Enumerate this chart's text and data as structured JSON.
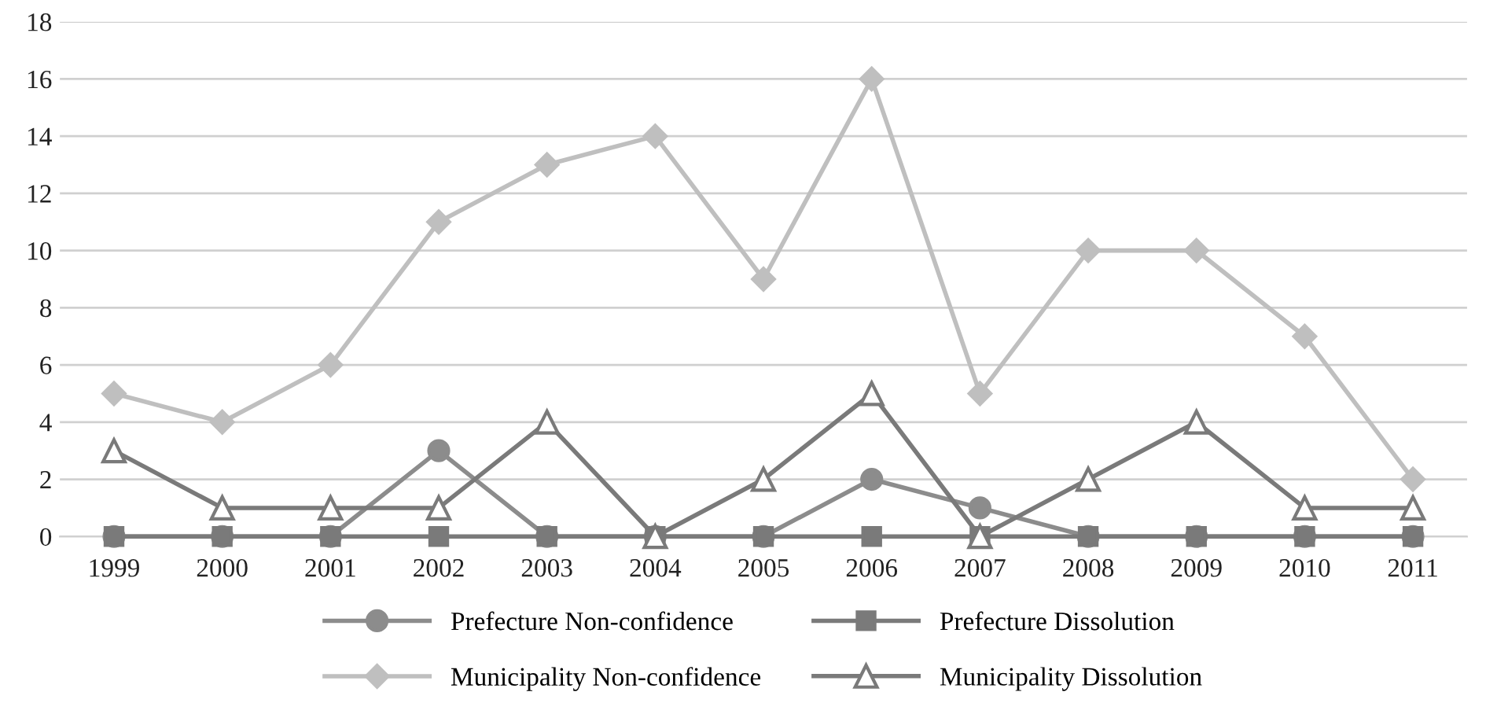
{
  "chart_data": {
    "type": "line",
    "categories": [
      "1999",
      "2000",
      "2001",
      "2002",
      "2003",
      "2004",
      "2005",
      "2006",
      "2007",
      "2008",
      "2009",
      "2010",
      "2011"
    ],
    "ylim": [
      0,
      18
    ],
    "yticks": [
      0,
      2,
      4,
      6,
      8,
      10,
      12,
      14,
      16,
      18
    ],
    "grid": "y",
    "legend": "bottom",
    "line_style": "solid",
    "series": [
      {
        "name": "Prefecture Non-confidence",
        "color": "#8c8c8c",
        "marker": "circle",
        "values": [
          0,
          0,
          0,
          3,
          0,
          0,
          0,
          2,
          1,
          0,
          0,
          0,
          0
        ]
      },
      {
        "name": "Prefecture Dissolution",
        "color": "#7a7a7a",
        "marker": "square",
        "values": [
          0,
          0,
          0,
          0,
          0,
          0,
          0,
          0,
          0,
          0,
          0,
          0,
          0
        ]
      },
      {
        "name": "Municipality Non-confidence",
        "color": "#bfbfbf",
        "marker": "diamond",
        "values": [
          5,
          4,
          6,
          11,
          13,
          14,
          9,
          16,
          5,
          10,
          10,
          7,
          2
        ]
      },
      {
        "name": "Municipality Dissolution",
        "color": "#7a7a7a",
        "marker": "triangle",
        "values": [
          3,
          1,
          1,
          1,
          4,
          0,
          2,
          5,
          0,
          2,
          4,
          1,
          1
        ]
      }
    ]
  }
}
